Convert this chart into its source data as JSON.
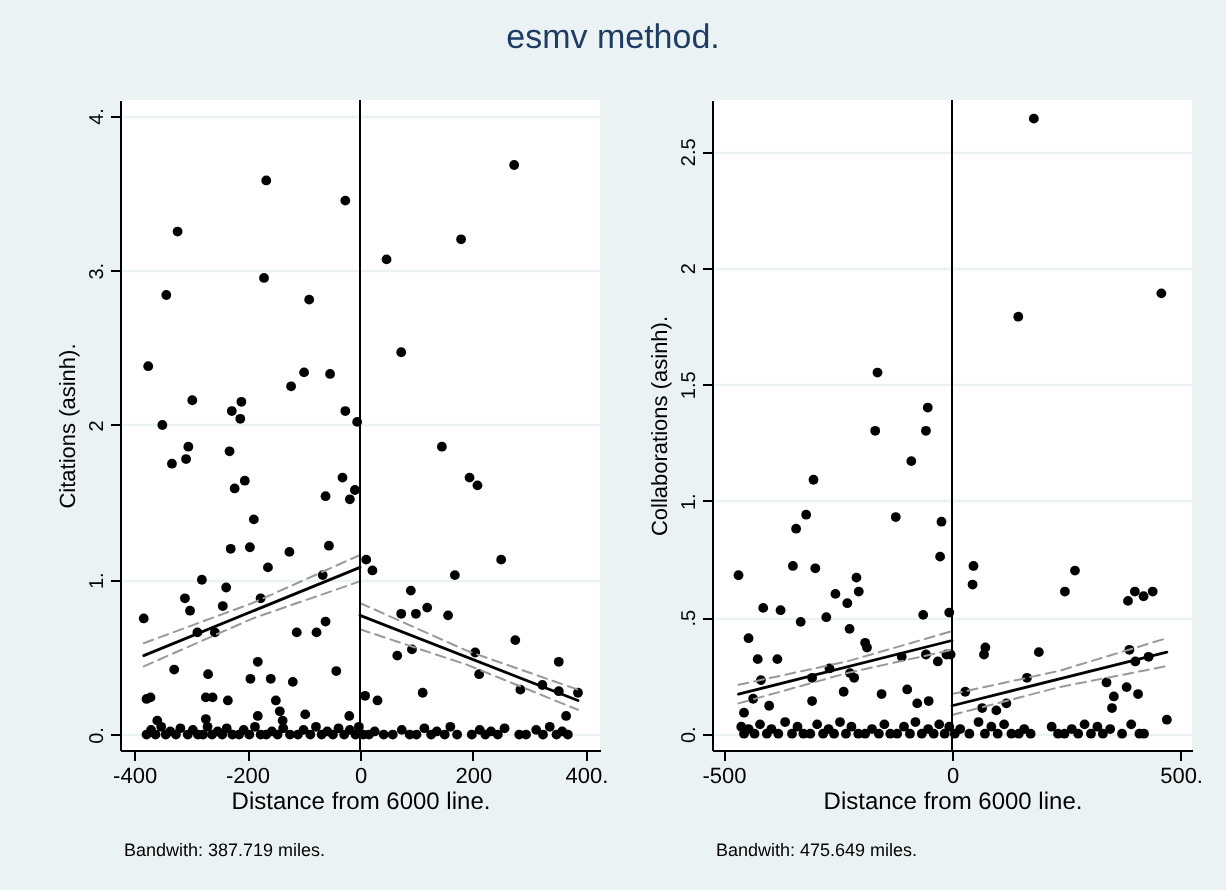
{
  "chart_data": [
    {
      "type": "scatter",
      "title": "esmv method.",
      "xlabel": "Distance from 6000 line.",
      "ylabel": "Citations (asinh).",
      "annotations": [
        "Bandwith: 387.719 miles."
      ],
      "grid": "y",
      "xlim": [
        -425,
        425
      ],
      "ylim": [
        -0.1,
        4.1
      ],
      "xticks": [
        -400,
        -200,
        0,
        200,
        {
          "value": 400,
          "label": "400."
        }
      ],
      "yticks": [
        {
          "value": 0,
          "label": "0."
        },
        {
          "value": 1,
          "label": "1."
        },
        2,
        {
          "value": 3,
          "label": "3."
        },
        {
          "value": 4,
          "label": "4."
        }
      ],
      "ref_lines": [
        {
          "axis": "x",
          "value": 0,
          "color": "#000000"
        }
      ],
      "series": [
        {
          "type": "scatter",
          "color": "#000000",
          "x": [
            -166,
            -323,
            -26,
            273,
            179,
            47,
            -343,
            -170,
            -90,
            -375,
            73,
            -99,
            -53,
            -122,
            -297,
            -210,
            -227,
            -212,
            -26,
            -5,
            -350,
            -304,
            -308,
            -333,
            -231,
            145,
            194,
            -204,
            -31,
            -222,
            -188,
            -61,
            -18,
            -9,
            208,
            -229,
            -195,
            -125,
            -55,
            -163,
            -66,
            11,
            22,
            168,
            250,
            -383,
            -280,
            -310,
            -301,
            -237,
            -243,
            -176,
            -288,
            -257,
            -112,
            -77,
            -61,
            90,
            99,
            73,
            119,
            156,
            66,
            92,
            204,
            275,
            -181,
            -329,
            -269,
            -42,
            -194,
            -158,
            -119,
            211,
            352,
            -378,
            -371,
            -273,
            -261,
            -234,
            -149,
            -142,
            9,
            31,
            111,
            284,
            352,
            386,
            323,
            365,
            -273,
            -181,
            -97,
            -19,
            -137,
            -359,
            -378,
            -370,
            -362,
            -352,
            -344,
            -336,
            -326,
            -318,
            -305,
            -296,
            -287,
            -278,
            -270,
            -262,
            -252,
            -244,
            -236,
            -226,
            -214,
            -206,
            -196,
            -186,
            -176,
            -166,
            -156,
            -146,
            -136,
            -124,
            -110,
            -100,
            -88,
            -78,
            -68,
            -58,
            -48,
            -38,
            -28,
            -18,
            -8,
            -2,
            6,
            16,
            26,
            42,
            58,
            74,
            88,
            100,
            114,
            126,
            136,
            150,
            160,
            172,
            198,
            212,
            222,
            232,
            244,
            256,
            282,
            294,
            312,
            324,
            336,
            348,
            358,
            368
          ],
          "values": [
            3.58,
            3.25,
            3.45,
            3.68,
            3.2,
            3.07,
            2.84,
            2.95,
            2.81,
            2.38,
            2.47,
            2.34,
            2.33,
            2.25,
            2.16,
            2.15,
            2.09,
            2.04,
            2.09,
            2.02,
            2.0,
            1.86,
            1.78,
            1.75,
            1.83,
            1.86,
            1.66,
            1.64,
            1.66,
            1.59,
            1.39,
            1.54,
            1.52,
            1.58,
            1.61,
            1.2,
            1.21,
            1.18,
            1.22,
            1.08,
            1.03,
            1.13,
            1.06,
            1.03,
            1.13,
            0.75,
            1.0,
            0.88,
            0.8,
            0.95,
            0.83,
            0.88,
            0.66,
            0.66,
            0.66,
            0.66,
            0.73,
            0.93,
            0.78,
            0.78,
            0.82,
            0.77,
            0.51,
            0.55,
            0.53,
            0.61,
            0.47,
            0.42,
            0.39,
            0.41,
            0.36,
            0.36,
            0.34,
            0.39,
            0.47,
            0.23,
            0.24,
            0.24,
            0.24,
            0.22,
            0.22,
            0.15,
            0.25,
            0.22,
            0.27,
            0.29,
            0.28,
            0.27,
            0.32,
            0.12,
            0.1,
            0.12,
            0.13,
            0.12,
            0.09,
            0.09,
            0,
            0.03,
            0,
            0.05,
            0,
            0.02,
            0,
            0.04,
            0,
            0.03,
            0,
            0,
            0.05,
            0,
            0.02,
            0,
            0.04,
            0,
            0,
            0.03,
            0,
            0.05,
            0,
            0,
            0.02,
            0,
            0.04,
            0,
            0,
            0.03,
            0,
            0.05,
            0,
            0.02,
            0,
            0.04,
            0,
            0.03,
            0,
            0.05,
            0,
            0,
            0.02,
            0,
            0,
            0.03,
            0,
            0,
            0.04,
            0,
            0.02,
            0,
            0.05,
            0,
            0,
            0.03,
            0,
            0.02,
            0,
            0.04,
            0,
            0,
            0.03,
            0,
            0.05,
            0,
            0.02,
            0
          ],
          "marker": "circle"
        },
        {
          "type": "line",
          "color": "#000000",
          "line_style": "solid",
          "x": [
            -383,
            0
          ],
          "values": [
            0.51,
            1.08
          ]
        },
        {
          "type": "line",
          "color": "#000000",
          "line_style": "solid",
          "x": [
            0,
            386
          ],
          "values": [
            0.77,
            0.22
          ]
        },
        {
          "type": "line",
          "color": "#999999",
          "line_style": "dashed",
          "x": [
            -383,
            -190,
            0
          ],
          "values": [
            0.59,
            0.85,
            1.16
          ]
        },
        {
          "type": "line",
          "color": "#999999",
          "line_style": "dashed",
          "x": [
            -383,
            -190,
            0
          ],
          "values": [
            0.44,
            0.75,
            0.99
          ]
        },
        {
          "type": "line",
          "color": "#999999",
          "line_style": "dashed",
          "x": [
            0,
            190,
            386
          ],
          "values": [
            0.85,
            0.54,
            0.29
          ]
        },
        {
          "type": "line",
          "color": "#999999",
          "line_style": "dashed",
          "x": [
            0,
            190,
            386
          ],
          "values": [
            0.68,
            0.45,
            0.16
          ]
        }
      ]
    },
    {
      "type": "scatter",
      "xlabel": "Distance from 6000 line.",
      "ylabel": "Collaborations (asinh).",
      "annotations": [
        "Bandwith: 475.649 miles."
      ],
      "grid": "y",
      "xlim": [
        -525,
        525
      ],
      "ylim": [
        -0.07,
        2.72
      ],
      "xticks": [
        -500,
        0,
        {
          "value": 500,
          "label": "500."
        }
      ],
      "yticks": [
        {
          "value": 0,
          "label": "0."
        },
        {
          "value": 0.5,
          "label": ".5"
        },
        {
          "value": 1,
          "label": "1."
        },
        1.5,
        2,
        2.5
      ],
      "ref_lines": [
        {
          "axis": "x",
          "value": 0,
          "color": "#000000"
        }
      ],
      "series": [
        {
          "type": "scatter",
          "color": "#000000",
          "x": [
            179,
            458,
            145,
            -163,
            -53,
            -168,
            -57,
            -89,
            -303,
            -123,
            -319,
            -341,
            -23,
            -26,
            -348,
            -299,
            -467,
            47,
            45,
            269,
            247,
            -209,
            -204,
            -255,
            -229,
            -413,
            -375,
            -331,
            -275,
            -224,
            -63,
            -6,
            400,
            439,
            419,
            385,
            -445,
            -425,
            -382,
            -418,
            -190,
            -186,
            -223,
            -214,
            -268,
            -306,
            -110,
            -57,
            -12,
            -3,
            -31,
            -98,
            73,
            70,
            190,
            29,
            164,
            388,
            401,
            430,
            407,
            382,
            354,
            338,
            -435,
            -400,
            -237,
            -306,
            -154,
            -76,
            -51,
            66,
            97,
            119,
            350,
            470,
            -455,
            -461,
            -455,
            -445,
            -432,
            -420,
            -405,
            -395,
            -380,
            -365,
            -350,
            -338,
            -325,
            -310,
            -295,
            -282,
            -270,
            -258,
            -245,
            -232,
            -220,
            -205,
            -190,
            -175,
            -160,
            -148,
            -135,
            -120,
            -105,
            -92,
            -80,
            -66,
            -52,
            -40,
            -28,
            -16,
            -6,
            6,
            18,
            38,
            58,
            72,
            86,
            100,
            114,
            130,
            146,
            158,
            172,
            218,
            232,
            246,
            262,
            276,
            290,
            304,
            318,
            330,
            346,
            372,
            392,
            410,
            420
          ],
          "values": [
            2.64,
            1.89,
            1.79,
            1.55,
            1.4,
            1.3,
            1.3,
            1.17,
            1.09,
            0.93,
            0.94,
            0.88,
            0.91,
            0.76,
            0.72,
            0.71,
            0.68,
            0.72,
            0.64,
            0.7,
            0.61,
            0.67,
            0.61,
            0.6,
            0.56,
            0.54,
            0.53,
            0.48,
            0.5,
            0.45,
            0.51,
            0.52,
            0.61,
            0.61,
            0.59,
            0.57,
            0.41,
            0.32,
            0.32,
            0.23,
            0.39,
            0.37,
            0.26,
            0.24,
            0.28,
            0.24,
            0.33,
            0.34,
            0.34,
            0.34,
            0.31,
            0.19,
            0.37,
            0.34,
            0.35,
            0.18,
            0.24,
            0.36,
            0.31,
            0.33,
            0.17,
            0.2,
            0.16,
            0.22,
            0.15,
            0.12,
            0.18,
            0.14,
            0.17,
            0.13,
            0.14,
            0.11,
            0.1,
            0.13,
            0.11,
            0.06,
            0.09,
            0.03,
            0,
            0.02,
            0,
            0.04,
            0,
            0.02,
            0,
            0.05,
            0,
            0.03,
            0,
            0,
            0.04,
            0,
            0.02,
            0,
            0.05,
            0,
            0.03,
            0,
            0,
            0.02,
            0,
            0.04,
            0,
            0,
            0.03,
            0,
            0.05,
            0,
            0.02,
            0,
            0.04,
            0,
            0.03,
            0,
            0.02,
            0,
            0.05,
            0,
            0.03,
            0,
            0.04,
            0,
            0,
            0.02,
            0,
            0.03,
            0,
            0,
            0.02,
            0,
            0.04,
            0,
            0.03,
            0,
            0.02,
            0,
            0.04,
            0,
            0
          ],
          "marker": "circle"
        },
        {
          "type": "line",
          "color": "#000000",
          "line_style": "solid",
          "x": [
            -467,
            0
          ],
          "values": [
            0.17,
            0.4
          ]
        },
        {
          "type": "line",
          "color": "#000000",
          "line_style": "solid",
          "x": [
            0,
            470
          ],
          "values": [
            0.12,
            0.35
          ]
        },
        {
          "type": "line",
          "color": "#999999",
          "line_style": "dashed",
          "x": [
            -467,
            -230,
            0
          ],
          "values": [
            0.21,
            0.31,
            0.44
          ]
        },
        {
          "type": "line",
          "color": "#999999",
          "line_style": "dashed",
          "x": [
            -467,
            -230,
            0
          ],
          "values": [
            0.13,
            0.26,
            0.36
          ]
        },
        {
          "type": "line",
          "color": "#999999",
          "line_style": "dashed",
          "x": [
            0,
            235,
            470
          ],
          "values": [
            0.17,
            0.27,
            0.41
          ]
        },
        {
          "type": "line",
          "color": "#999999",
          "line_style": "dashed",
          "x": [
            0,
            235,
            470
          ],
          "values": [
            0.08,
            0.2,
            0.29
          ]
        }
      ]
    }
  ]
}
